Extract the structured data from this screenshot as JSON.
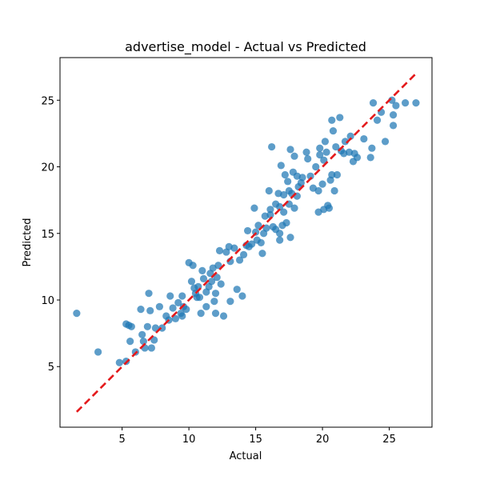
{
  "chart_data": {
    "type": "scatter",
    "title": "advertise_model - Actual vs Predicted",
    "xlabel": "Actual",
    "ylabel": "Predicted",
    "xlim": [
      0.35,
      28.2
    ],
    "ylim": [
      0.45,
      28.2
    ],
    "xticks": [
      5,
      10,
      15,
      20,
      25
    ],
    "yticks": [
      5,
      10,
      15,
      20,
      25
    ],
    "grid": false,
    "legend": "none",
    "colors": {
      "points": "#1f77b4",
      "reference_line": "#e41a1c"
    },
    "reference_line": {
      "style": "dashed",
      "from": [
        1.6,
        1.6
      ],
      "to": [
        27.0,
        27.0
      ]
    },
    "points": [
      [
        1.6,
        9.0
      ],
      [
        3.2,
        6.1
      ],
      [
        4.8,
        5.3
      ],
      [
        5.3,
        5.4
      ],
      [
        5.3,
        8.2
      ],
      [
        5.5,
        8.1
      ],
      [
        5.7,
        8.0
      ],
      [
        5.6,
        6.9
      ],
      [
        6.0,
        6.1
      ],
      [
        6.4,
        9.3
      ],
      [
        6.5,
        7.4
      ],
      [
        6.6,
        6.9
      ],
      [
        6.7,
        6.4
      ],
      [
        6.9,
        8.0
      ],
      [
        7.0,
        10.5
      ],
      [
        7.1,
        9.2
      ],
      [
        7.2,
        6.4
      ],
      [
        7.4,
        7.0
      ],
      [
        7.5,
        7.9
      ],
      [
        7.8,
        9.5
      ],
      [
        8.0,
        7.9
      ],
      [
        8.3,
        8.8
      ],
      [
        8.5,
        8.5
      ],
      [
        8.6,
        10.3
      ],
      [
        8.8,
        9.4
      ],
      [
        9.0,
        8.6
      ],
      [
        9.2,
        9.8
      ],
      [
        9.4,
        9.0
      ],
      [
        9.5,
        8.8
      ],
      [
        9.5,
        10.3
      ],
      [
        9.6,
        9.5
      ],
      [
        9.8,
        9.3
      ],
      [
        10.0,
        12.8
      ],
      [
        10.2,
        11.4
      ],
      [
        10.3,
        12.6
      ],
      [
        10.4,
        10.9
      ],
      [
        10.5,
        10.5
      ],
      [
        10.6,
        10.2
      ],
      [
        10.7,
        11.0
      ],
      [
        10.8,
        10.2
      ],
      [
        10.9,
        9.0
      ],
      [
        11.0,
        12.2
      ],
      [
        11.1,
        11.6
      ],
      [
        11.3,
        10.6
      ],
      [
        11.3,
        9.5
      ],
      [
        11.5,
        11.0
      ],
      [
        11.6,
        12.0
      ],
      [
        11.7,
        11.4
      ],
      [
        11.8,
        12.4
      ],
      [
        11.9,
        9.9
      ],
      [
        12.0,
        9.0
      ],
      [
        12.0,
        10.5
      ],
      [
        12.1,
        11.7
      ],
      [
        12.2,
        12.6
      ],
      [
        12.3,
        13.7
      ],
      [
        12.4,
        11.2
      ],
      [
        12.6,
        8.8
      ],
      [
        12.8,
        13.6
      ],
      [
        13.0,
        14.0
      ],
      [
        13.1,
        12.9
      ],
      [
        13.1,
        9.9
      ],
      [
        13.4,
        13.9
      ],
      [
        13.6,
        10.8
      ],
      [
        13.8,
        13.0
      ],
      [
        14.0,
        10.3
      ],
      [
        14.1,
        13.4
      ],
      [
        14.3,
        14.1
      ],
      [
        14.4,
        15.2
      ],
      [
        14.5,
        14.0
      ],
      [
        14.7,
        14.2
      ],
      [
        14.9,
        16.9
      ],
      [
        15.0,
        15.1
      ],
      [
        15.1,
        14.5
      ],
      [
        15.2,
        15.6
      ],
      [
        15.4,
        14.3
      ],
      [
        15.5,
        13.5
      ],
      [
        15.6,
        15.0
      ],
      [
        15.7,
        16.3
      ],
      [
        15.8,
        15.4
      ],
      [
        16.0,
        18.2
      ],
      [
        16.1,
        16.4
      ],
      [
        16.1,
        16.8
      ],
      [
        16.2,
        21.5
      ],
      [
        16.3,
        15.5
      ],
      [
        16.5,
        15.3
      ],
      [
        16.5,
        17.2
      ],
      [
        16.7,
        18.0
      ],
      [
        16.8,
        14.5
      ],
      [
        16.8,
        15.0
      ],
      [
        16.8,
        17.0
      ],
      [
        16.9,
        20.1
      ],
      [
        17.0,
        15.6
      ],
      [
        17.1,
        16.6
      ],
      [
        17.1,
        17.9
      ],
      [
        17.2,
        19.4
      ],
      [
        17.3,
        15.8
      ],
      [
        17.4,
        18.9
      ],
      [
        17.5,
        18.2
      ],
      [
        17.5,
        17.2
      ],
      [
        17.6,
        21.3
      ],
      [
        17.6,
        14.7
      ],
      [
        17.7,
        18.0
      ],
      [
        17.8,
        19.6
      ],
      [
        17.9,
        20.8
      ],
      [
        17.9,
        16.9
      ],
      [
        18.1,
        17.8
      ],
      [
        18.1,
        19.3
      ],
      [
        18.2,
        18.5
      ],
      [
        18.4,
        18.8
      ],
      [
        18.5,
        19.2
      ],
      [
        18.8,
        21.1
      ],
      [
        18.9,
        20.6
      ],
      [
        19.1,
        19.3
      ],
      [
        19.3,
        18.4
      ],
      [
        19.5,
        20.0
      ],
      [
        19.7,
        18.2
      ],
      [
        19.7,
        16.6
      ],
      [
        19.8,
        21.4
      ],
      [
        19.8,
        20.9
      ],
      [
        20.0,
        18.7
      ],
      [
        20.1,
        16.8
      ],
      [
        20.1,
        20.5
      ],
      [
        20.2,
        21.9
      ],
      [
        20.3,
        21.1
      ],
      [
        20.4,
        17.1
      ],
      [
        20.5,
        16.9
      ],
      [
        20.6,
        19.0
      ],
      [
        20.7,
        23.5
      ],
      [
        20.7,
        19.4
      ],
      [
        20.8,
        22.7
      ],
      [
        20.9,
        18.2
      ],
      [
        21.0,
        21.5
      ],
      [
        21.1,
        19.4
      ],
      [
        21.3,
        23.7
      ],
      [
        21.4,
        21.2
      ],
      [
        21.6,
        21.0
      ],
      [
        21.7,
        21.9
      ],
      [
        22.0,
        21.1
      ],
      [
        22.1,
        22.3
      ],
      [
        22.3,
        20.4
      ],
      [
        22.4,
        21.0
      ],
      [
        22.6,
        20.7
      ],
      [
        23.1,
        22.1
      ],
      [
        23.6,
        20.7
      ],
      [
        23.7,
        21.4
      ],
      [
        23.8,
        24.8
      ],
      [
        24.1,
        23.5
      ],
      [
        24.4,
        24.1
      ],
      [
        24.7,
        21.9
      ],
      [
        25.2,
        25.0
      ],
      [
        25.3,
        23.9
      ],
      [
        25.3,
        23.1
      ],
      [
        25.5,
        24.6
      ],
      [
        26.2,
        24.8
      ],
      [
        27.0,
        24.8
      ]
    ]
  }
}
